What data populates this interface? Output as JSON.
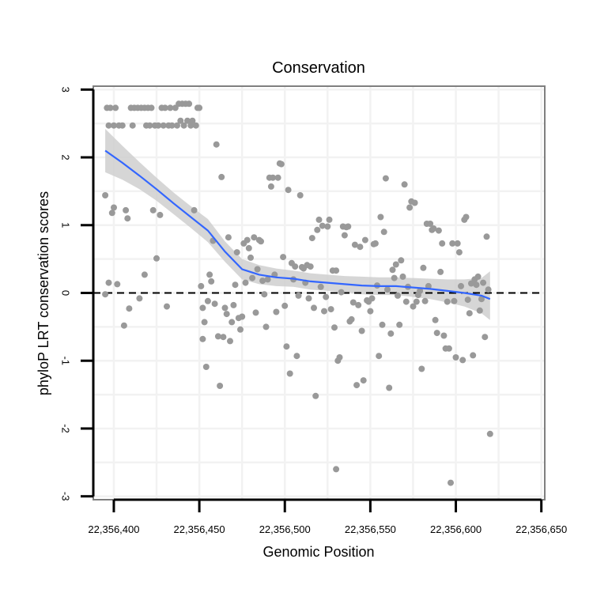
{
  "chart_data": {
    "type": "scatter",
    "title": "Conservation",
    "xlabel": "Genomic Position",
    "ylabel": "phyloP LRT conservation scores",
    "xlim": [
      22356388,
      22356652
    ],
    "ylim": [
      -3.05,
      3.05
    ],
    "x_ticks": [
      22356400,
      22356450,
      22356500,
      22356550,
      22356600,
      22356650
    ],
    "x_tick_labels": [
      "22,356,400",
      "22,356,450",
      "22,356,500",
      "22,356,550",
      "22,356,600",
      "22,356,650"
    ],
    "y_ticks": [
      -3,
      -2,
      -1,
      0,
      1,
      2,
      3
    ],
    "y_tick_labels": [
      "-3",
      "-2",
      "-1",
      "0",
      "1",
      "2",
      "3"
    ],
    "reference_line": {
      "y": 0,
      "style": "dashed",
      "color": "#000000"
    },
    "colors": {
      "points": "#999999",
      "smooth": "#3366ff",
      "band": "#cccccc",
      "panel_border": "#7f7f7f",
      "grid": "#f2f2f2"
    },
    "points": [
      [
        22356395,
        1.44
      ],
      [
        22356395,
        -0.02
      ],
      [
        22356396,
        2.73
      ],
      [
        22356397,
        0.15
      ],
      [
        22356397,
        2.47
      ],
      [
        22356398,
        2.73
      ],
      [
        22356399,
        1.18
      ],
      [
        22356400,
        1.26
      ],
      [
        22356400,
        2.47
      ],
      [
        22356401,
        2.73
      ],
      [
        22356402,
        0.13
      ],
      [
        22356403,
        2.47
      ],
      [
        22356405,
        2.47
      ],
      [
        22356406,
        -0.48
      ],
      [
        22356407,
        1.22
      ],
      [
        22356408,
        1.1
      ],
      [
        22356409,
        -0.23
      ],
      [
        22356410,
        2.73
      ],
      [
        22356411,
        2.47
      ],
      [
        22356412,
        2.73
      ],
      [
        22356414,
        2.73
      ],
      [
        22356415,
        -0.08
      ],
      [
        22356416,
        2.73
      ],
      [
        22356418,
        0.27
      ],
      [
        22356418,
        2.73
      ],
      [
        22356419,
        2.47
      ],
      [
        22356420,
        2.73
      ],
      [
        22356421,
        2.47
      ],
      [
        22356422,
        2.73
      ],
      [
        22356423,
        1.22
      ],
      [
        22356424,
        2.47
      ],
      [
        22356425,
        0.51
      ],
      [
        22356426,
        2.47
      ],
      [
        22356427,
        1.15
      ],
      [
        22356428,
        2.73
      ],
      [
        22356429,
        2.47
      ],
      [
        22356430,
        2.73
      ],
      [
        22356431,
        -0.2
      ],
      [
        22356432,
        2.47
      ],
      [
        22356433,
        2.73
      ],
      [
        22356434,
        2.47
      ],
      [
        22356436,
        2.73
      ],
      [
        22356437,
        2.47
      ],
      [
        22356438,
        2.79
      ],
      [
        22356439,
        2.54
      ],
      [
        22356440,
        2.79
      ],
      [
        22356441,
        2.47
      ],
      [
        22356442,
        2.79
      ],
      [
        22356443,
        2.54
      ],
      [
        22356444,
        2.79
      ],
      [
        22356445,
        2.47
      ],
      [
        22356446,
        2.54
      ],
      [
        22356447,
        1.22
      ],
      [
        22356448,
        2.47
      ],
      [
        22356449,
        2.73
      ],
      [
        22356450,
        2.73
      ],
      [
        22356451,
        0.1
      ],
      [
        22356452,
        -0.22
      ],
      [
        22356452,
        -0.68
      ],
      [
        22356453,
        -0.43
      ],
      [
        22356454,
        -1.09
      ],
      [
        22356455,
        -0.12
      ],
      [
        22356456,
        0.27
      ],
      [
        22356457,
        0.17
      ],
      [
        22356458,
        0.77
      ],
      [
        22356459,
        -0.16
      ],
      [
        22356460,
        2.19
      ],
      [
        22356461,
        -0.64
      ],
      [
        22356462,
        -1.37
      ],
      [
        22356463,
        1.71
      ],
      [
        22356464,
        -0.65
      ],
      [
        22356465,
        -0.22
      ],
      [
        22356466,
        -0.31
      ],
      [
        22356467,
        0.82
      ],
      [
        22356468,
        -0.71
      ],
      [
        22356469,
        -0.43
      ],
      [
        22356470,
        -0.18
      ],
      [
        22356471,
        0.12
      ],
      [
        22356472,
        0.6
      ],
      [
        22356473,
        -0.37
      ],
      [
        22356474,
        -0.54
      ],
      [
        22356475,
        -0.35
      ],
      [
        22356476,
        0.73
      ],
      [
        22356477,
        0.15
      ],
      [
        22356478,
        0.78
      ],
      [
        22356479,
        0.66
      ],
      [
        22356480,
        0.52
      ],
      [
        22356481,
        0.22
      ],
      [
        22356482,
        0.82
      ],
      [
        22356483,
        -0.29
      ],
      [
        22356484,
        0.35
      ],
      [
        22356485,
        0.78
      ],
      [
        22356486,
        0.76
      ],
      [
        22356487,
        0.18
      ],
      [
        22356488,
        -0.02
      ],
      [
        22356489,
        -0.5
      ],
      [
        22356490,
        0.2
      ],
      [
        22356491,
        1.7
      ],
      [
        22356492,
        1.57
      ],
      [
        22356493,
        1.7
      ],
      [
        22356494,
        0.27
      ],
      [
        22356495,
        -0.28
      ],
      [
        22356496,
        1.7
      ],
      [
        22356497,
        1.91
      ],
      [
        22356498,
        1.9
      ],
      [
        22356499,
        0.53
      ],
      [
        22356500,
        -0.19
      ],
      [
        22356501,
        -0.79
      ],
      [
        22356502,
        1.52
      ],
      [
        22356503,
        -1.19
      ],
      [
        22356504,
        0.44
      ],
      [
        22356505,
        0.2
      ],
      [
        22356506,
        0.39
      ],
      [
        22356507,
        -0.93
      ],
      [
        22356508,
        -0.04
      ],
      [
        22356509,
        1.44
      ],
      [
        22356510,
        0.38
      ],
      [
        22356511,
        0.36
      ],
      [
        22356512,
        0.15
      ],
      [
        22356513,
        0.41
      ],
      [
        22356514,
        -0.08
      ],
      [
        22356515,
        0.39
      ],
      [
        22356516,
        0.81
      ],
      [
        22356517,
        -0.22
      ],
      [
        22356518,
        -1.52
      ],
      [
        22356519,
        0.93
      ],
      [
        22356520,
        1.08
      ],
      [
        22356521,
        0.09
      ],
      [
        22356522,
        0.99
      ],
      [
        22356523,
        -0.27
      ],
      [
        22356524,
        -0.06
      ],
      [
        22356525,
        0.98
      ],
      [
        22356526,
        1.08
      ],
      [
        22356527,
        -0.24
      ],
      [
        22356528,
        0.33
      ],
      [
        22356529,
        -0.51
      ],
      [
        22356530,
        -2.6
      ],
      [
        22356530,
        0.33
      ],
      [
        22356531,
        -1.0
      ],
      [
        22356532,
        -0.95
      ],
      [
        22356533,
        0.01
      ],
      [
        22356534,
        0.98
      ],
      [
        22356535,
        0.85
      ],
      [
        22356536,
        0.97
      ],
      [
        22356537,
        0.98
      ],
      [
        22356538,
        -0.42
      ],
      [
        22356539,
        -0.39
      ],
      [
        22356540,
        -0.14
      ],
      [
        22356541,
        0.71
      ],
      [
        22356542,
        -1.36
      ],
      [
        22356543,
        -0.18
      ],
      [
        22356544,
        0.68
      ],
      [
        22356545,
        -0.56
      ],
      [
        22356546,
        -1.29
      ],
      [
        22356547,
        0.78
      ],
      [
        22356548,
        -0.11
      ],
      [
        22356549,
        -0.13
      ],
      [
        22356550,
        -0.27
      ],
      [
        22356551,
        -0.08
      ],
      [
        22356552,
        0.72
      ],
      [
        22356553,
        0.73
      ],
      [
        22356554,
        0.11
      ],
      [
        22356555,
        -0.93
      ],
      [
        22356556,
        1.12
      ],
      [
        22356557,
        -0.47
      ],
      [
        22356558,
        0.9
      ],
      [
        22356559,
        1.69
      ],
      [
        22356560,
        0.05
      ],
      [
        22356561,
        -1.4
      ],
      [
        22356562,
        -0.6
      ],
      [
        22356563,
        0.34
      ],
      [
        22356564,
        0.22
      ],
      [
        22356565,
        0.42
      ],
      [
        22356566,
        -0.04
      ],
      [
        22356567,
        -0.47
      ],
      [
        22356568,
        0.48
      ],
      [
        22356569,
        0.24
      ],
      [
        22356570,
        1.6
      ],
      [
        22356571,
        -0.13
      ],
      [
        22356572,
        0.09
      ],
      [
        22356573,
        1.26
      ],
      [
        22356574,
        1.35
      ],
      [
        22356575,
        -0.2
      ],
      [
        22356576,
        1.33
      ],
      [
        22356577,
        -0.13
      ],
      [
        22356578,
        -0.03
      ],
      [
        22356579,
        0.03
      ],
      [
        22356580,
        -1.12
      ],
      [
        22356581,
        0.37
      ],
      [
        22356582,
        -0.12
      ],
      [
        22356583,
        1.02
      ],
      [
        22356584,
        0.1
      ],
      [
        22356585,
        1.02
      ],
      [
        22356586,
        0.93
      ],
      [
        22356587,
        0.95
      ],
      [
        22356588,
        -0.4
      ],
      [
        22356589,
        -0.59
      ],
      [
        22356590,
        0.92
      ],
      [
        22356591,
        0.31
      ],
      [
        22356592,
        0.73
      ],
      [
        22356593,
        -0.63
      ],
      [
        22356594,
        -0.82
      ],
      [
        22356595,
        -0.13
      ],
      [
        22356596,
        -0.82
      ],
      [
        22356597,
        -2.8
      ],
      [
        22356598,
        0.73
      ],
      [
        22356599,
        -0.12
      ],
      [
        22356600,
        -0.95
      ],
      [
        22356601,
        0.73
      ],
      [
        22356602,
        0.6
      ],
      [
        22356603,
        0.1
      ],
      [
        22356604,
        -0.99
      ],
      [
        22356605,
        1.08
      ],
      [
        22356606,
        1.12
      ],
      [
        22356607,
        -0.1
      ],
      [
        22356608,
        -0.3
      ],
      [
        22356609,
        0.14
      ],
      [
        22356610,
        -0.92
      ],
      [
        22356611,
        0.2
      ],
      [
        22356612,
        0.12
      ],
      [
        22356613,
        0.24
      ],
      [
        22356614,
        -0.26
      ],
      [
        22356615,
        -0.09
      ],
      [
        22356616,
        0.15
      ],
      [
        22356617,
        -0.65
      ],
      [
        22356618,
        0.83
      ],
      [
        22356619,
        0.05
      ],
      [
        22356620,
        -2.08
      ]
    ],
    "smooth": {
      "method": "loess",
      "x": [
        22356395,
        22356405,
        22356415,
        22356425,
        22356435,
        22356445,
        22356455,
        22356465,
        22356475,
        22356485,
        22356495,
        22356505,
        22356515,
        22356525,
        22356535,
        22356545,
        22356555,
        22356565,
        22356575,
        22356585,
        22356595,
        22356605,
        22356615,
        22356620
      ],
      "y": [
        2.1,
        1.92,
        1.73,
        1.53,
        1.32,
        1.12,
        0.92,
        0.61,
        0.35,
        0.27,
        0.23,
        0.21,
        0.17,
        0.15,
        0.13,
        0.11,
        0.1,
        0.1,
        0.08,
        0.06,
        0.03,
        0.0,
        -0.04,
        -0.09
      ],
      "lower": [
        1.78,
        1.67,
        1.53,
        1.36,
        1.16,
        0.96,
        0.75,
        0.46,
        0.2,
        0.13,
        0.1,
        0.09,
        0.05,
        0.03,
        0.01,
        -0.02,
        -0.03,
        -0.03,
        -0.06,
        -0.09,
        -0.14,
        -0.2,
        -0.3,
        -0.4
      ],
      "upper": [
        2.42,
        2.17,
        1.93,
        1.7,
        1.48,
        1.28,
        1.09,
        0.76,
        0.5,
        0.41,
        0.36,
        0.33,
        0.29,
        0.27,
        0.25,
        0.24,
        0.23,
        0.23,
        0.22,
        0.21,
        0.2,
        0.2,
        0.22,
        0.32
      ]
    }
  }
}
